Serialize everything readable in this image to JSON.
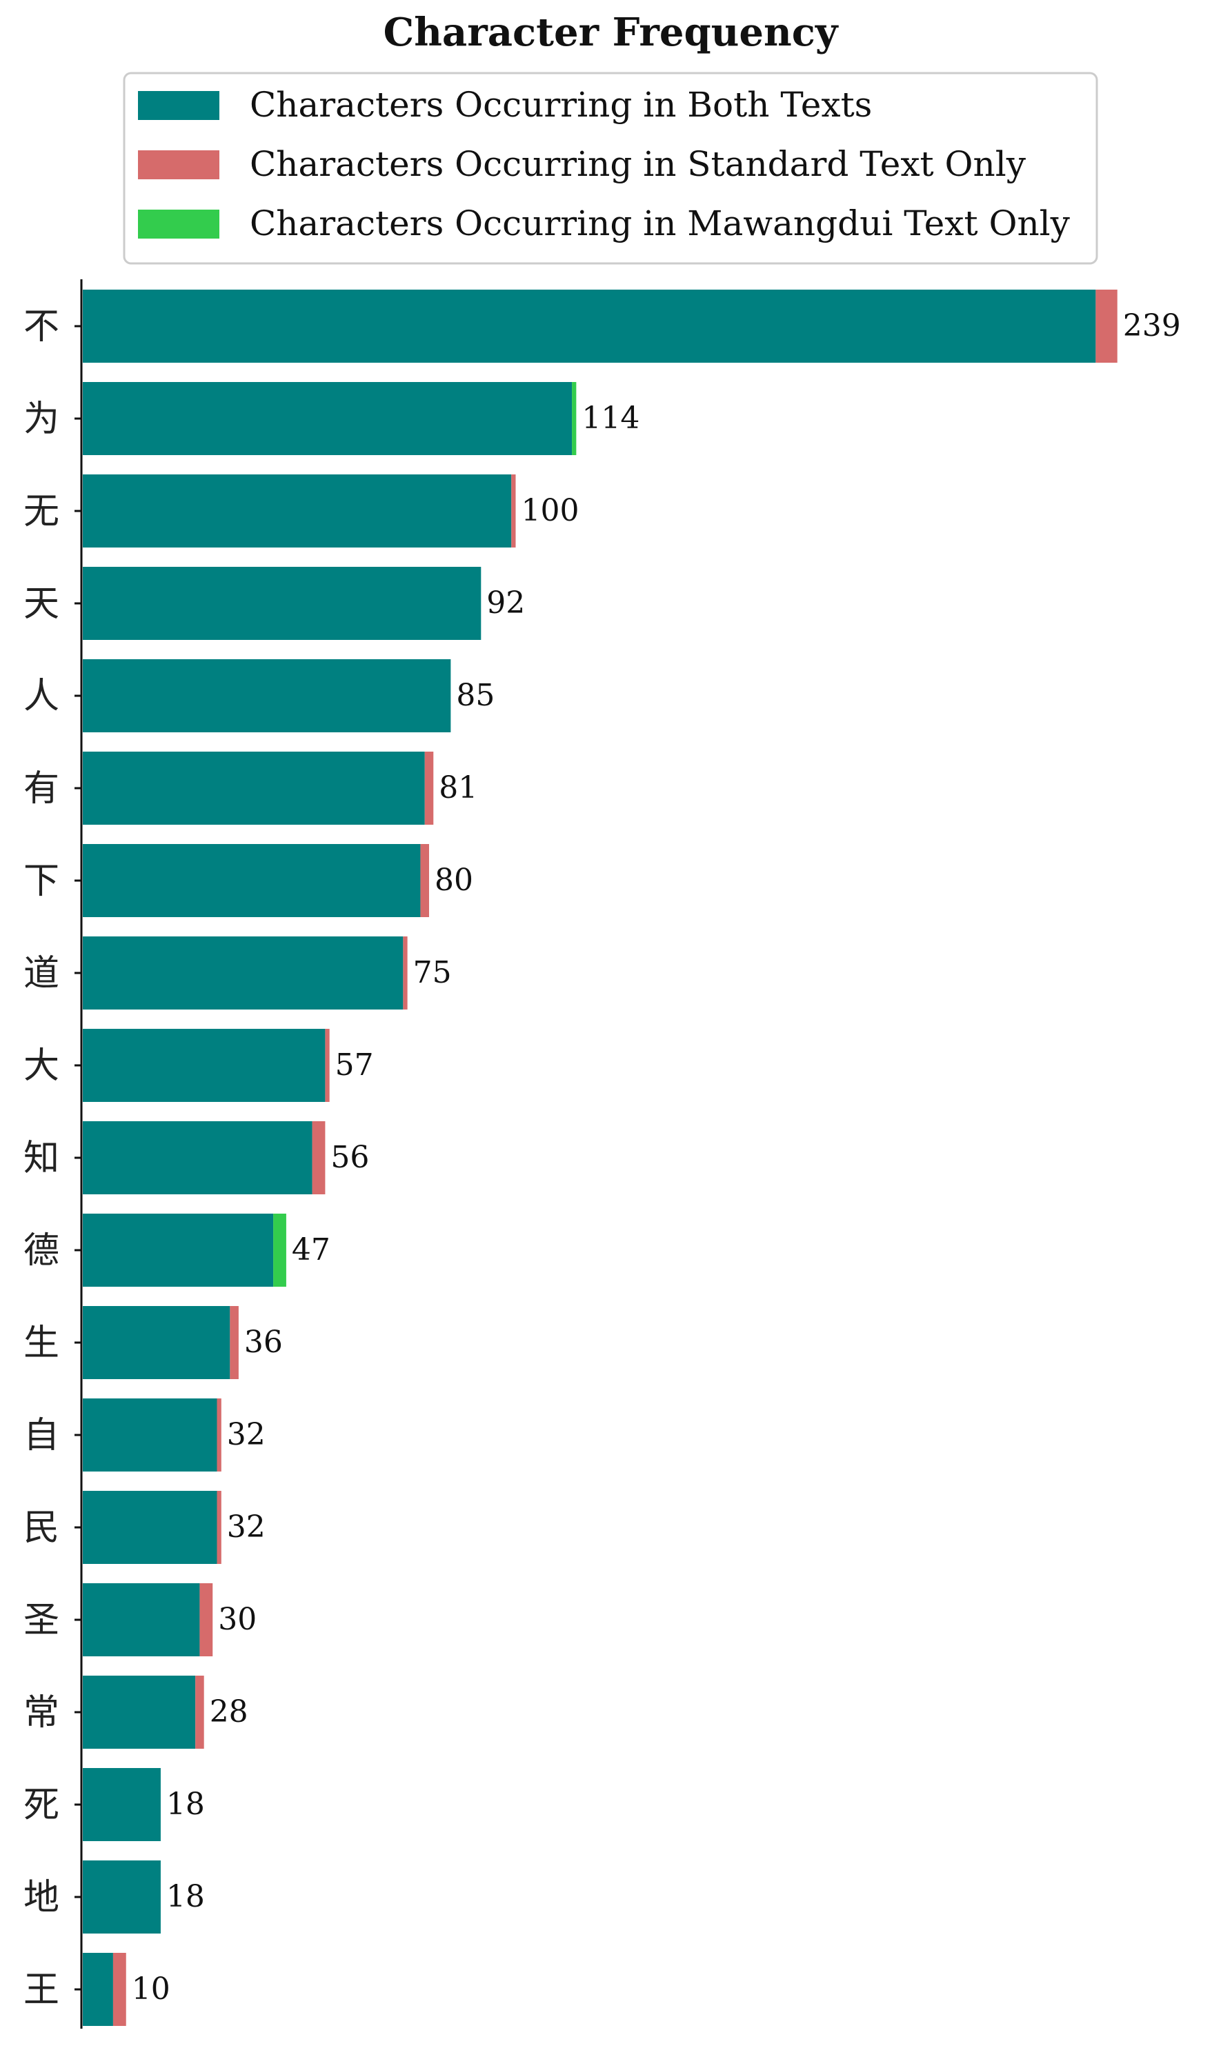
{
  "chart_data": {
    "type": "bar",
    "orientation": "horizontal",
    "stacked": true,
    "title": "Character Frequency",
    "legend_position": "top",
    "xlim": [
      0,
      250
    ],
    "grid": false,
    "categories": [
      "不",
      "为",
      "无",
      "天",
      "人",
      "有",
      "下",
      "道",
      "大",
      "知",
      "德",
      "生",
      "自",
      "民",
      "圣",
      "常",
      "死",
      "地",
      "王"
    ],
    "totals": [
      239,
      114,
      100,
      92,
      85,
      81,
      80,
      75,
      57,
      56,
      47,
      36,
      32,
      32,
      30,
      28,
      18,
      18,
      10
    ],
    "series": [
      {
        "name": "Characters Occurring in Both Texts",
        "color": "#008080",
        "values": [
          234,
          113,
          99,
          92,
          85,
          79,
          78,
          74,
          56,
          53,
          44,
          34,
          31,
          31,
          27,
          26,
          18,
          18,
          7
        ]
      },
      {
        "name": "Characters Occurring in Standard Text Only",
        "color": "#d66b6b",
        "values": [
          5,
          0,
          1,
          0,
          0,
          2,
          2,
          1,
          1,
          3,
          0,
          2,
          1,
          1,
          3,
          2,
          0,
          0,
          3
        ]
      },
      {
        "name": "Characters Occurring in Mawangdui Text Only",
        "color": "#33cc4d",
        "values": [
          0,
          1,
          0,
          0,
          0,
          0,
          0,
          0,
          0,
          0,
          3,
          0,
          0,
          0,
          0,
          0,
          0,
          0,
          0
        ]
      }
    ]
  }
}
